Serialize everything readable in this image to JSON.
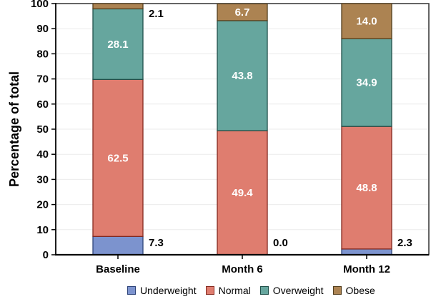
{
  "chart_data": {
    "type": "bar",
    "stacked": true,
    "title": "",
    "xlabel": "",
    "ylabel": "Percentage of total",
    "ylim": [
      0,
      100
    ],
    "yticks": [
      0,
      10,
      20,
      30,
      40,
      50,
      60,
      70,
      80,
      90,
      100
    ],
    "grid": true,
    "legend_position": "bottom",
    "value_label_decimals": 1,
    "categories": [
      "Baseline",
      "Month 6",
      "Month 12"
    ],
    "series": [
      {
        "name": "Underweight",
        "values": [
          7.3,
          0.0,
          2.3
        ],
        "fill": "#7C93CE",
        "stroke": "#2E4479",
        "label_placement": "outside"
      },
      {
        "name": "Normal",
        "values": [
          62.5,
          49.4,
          48.8
        ],
        "fill": "#DF7D6F",
        "stroke": "#84291F",
        "label_placement": "auto"
      },
      {
        "name": "Overweight",
        "values": [
          28.1,
          43.8,
          34.9
        ],
        "fill": "#66A69E",
        "stroke": "#20504A",
        "label_placement": "auto"
      },
      {
        "name": "Obese",
        "values": [
          2.1,
          6.7,
          14.0
        ],
        "fill": "#AC8352",
        "stroke": "#533E1D",
        "label_placement": "auto"
      }
    ],
    "value_labels": {
      "Baseline": {
        "Underweight": "7.3",
        "Normal": "62.5",
        "Overweight": "28.1",
        "Obese": "2.1"
      },
      "Month 6": {
        "Underweight": "0.0",
        "Normal": "49.4",
        "Overweight": "43.8",
        "Obese": "6.7"
      },
      "Month 12": {
        "Underweight": "2.3",
        "Normal": "48.8",
        "Overweight": "34.9",
        "Obese": "14.0"
      }
    },
    "style_colors": {
      "grid": "#ebebeb",
      "frame": "#3f3f3f",
      "axis": "#000000",
      "inside_label": "#ffffff",
      "outside_label": "#000000",
      "tick_label": "#000000"
    }
  }
}
